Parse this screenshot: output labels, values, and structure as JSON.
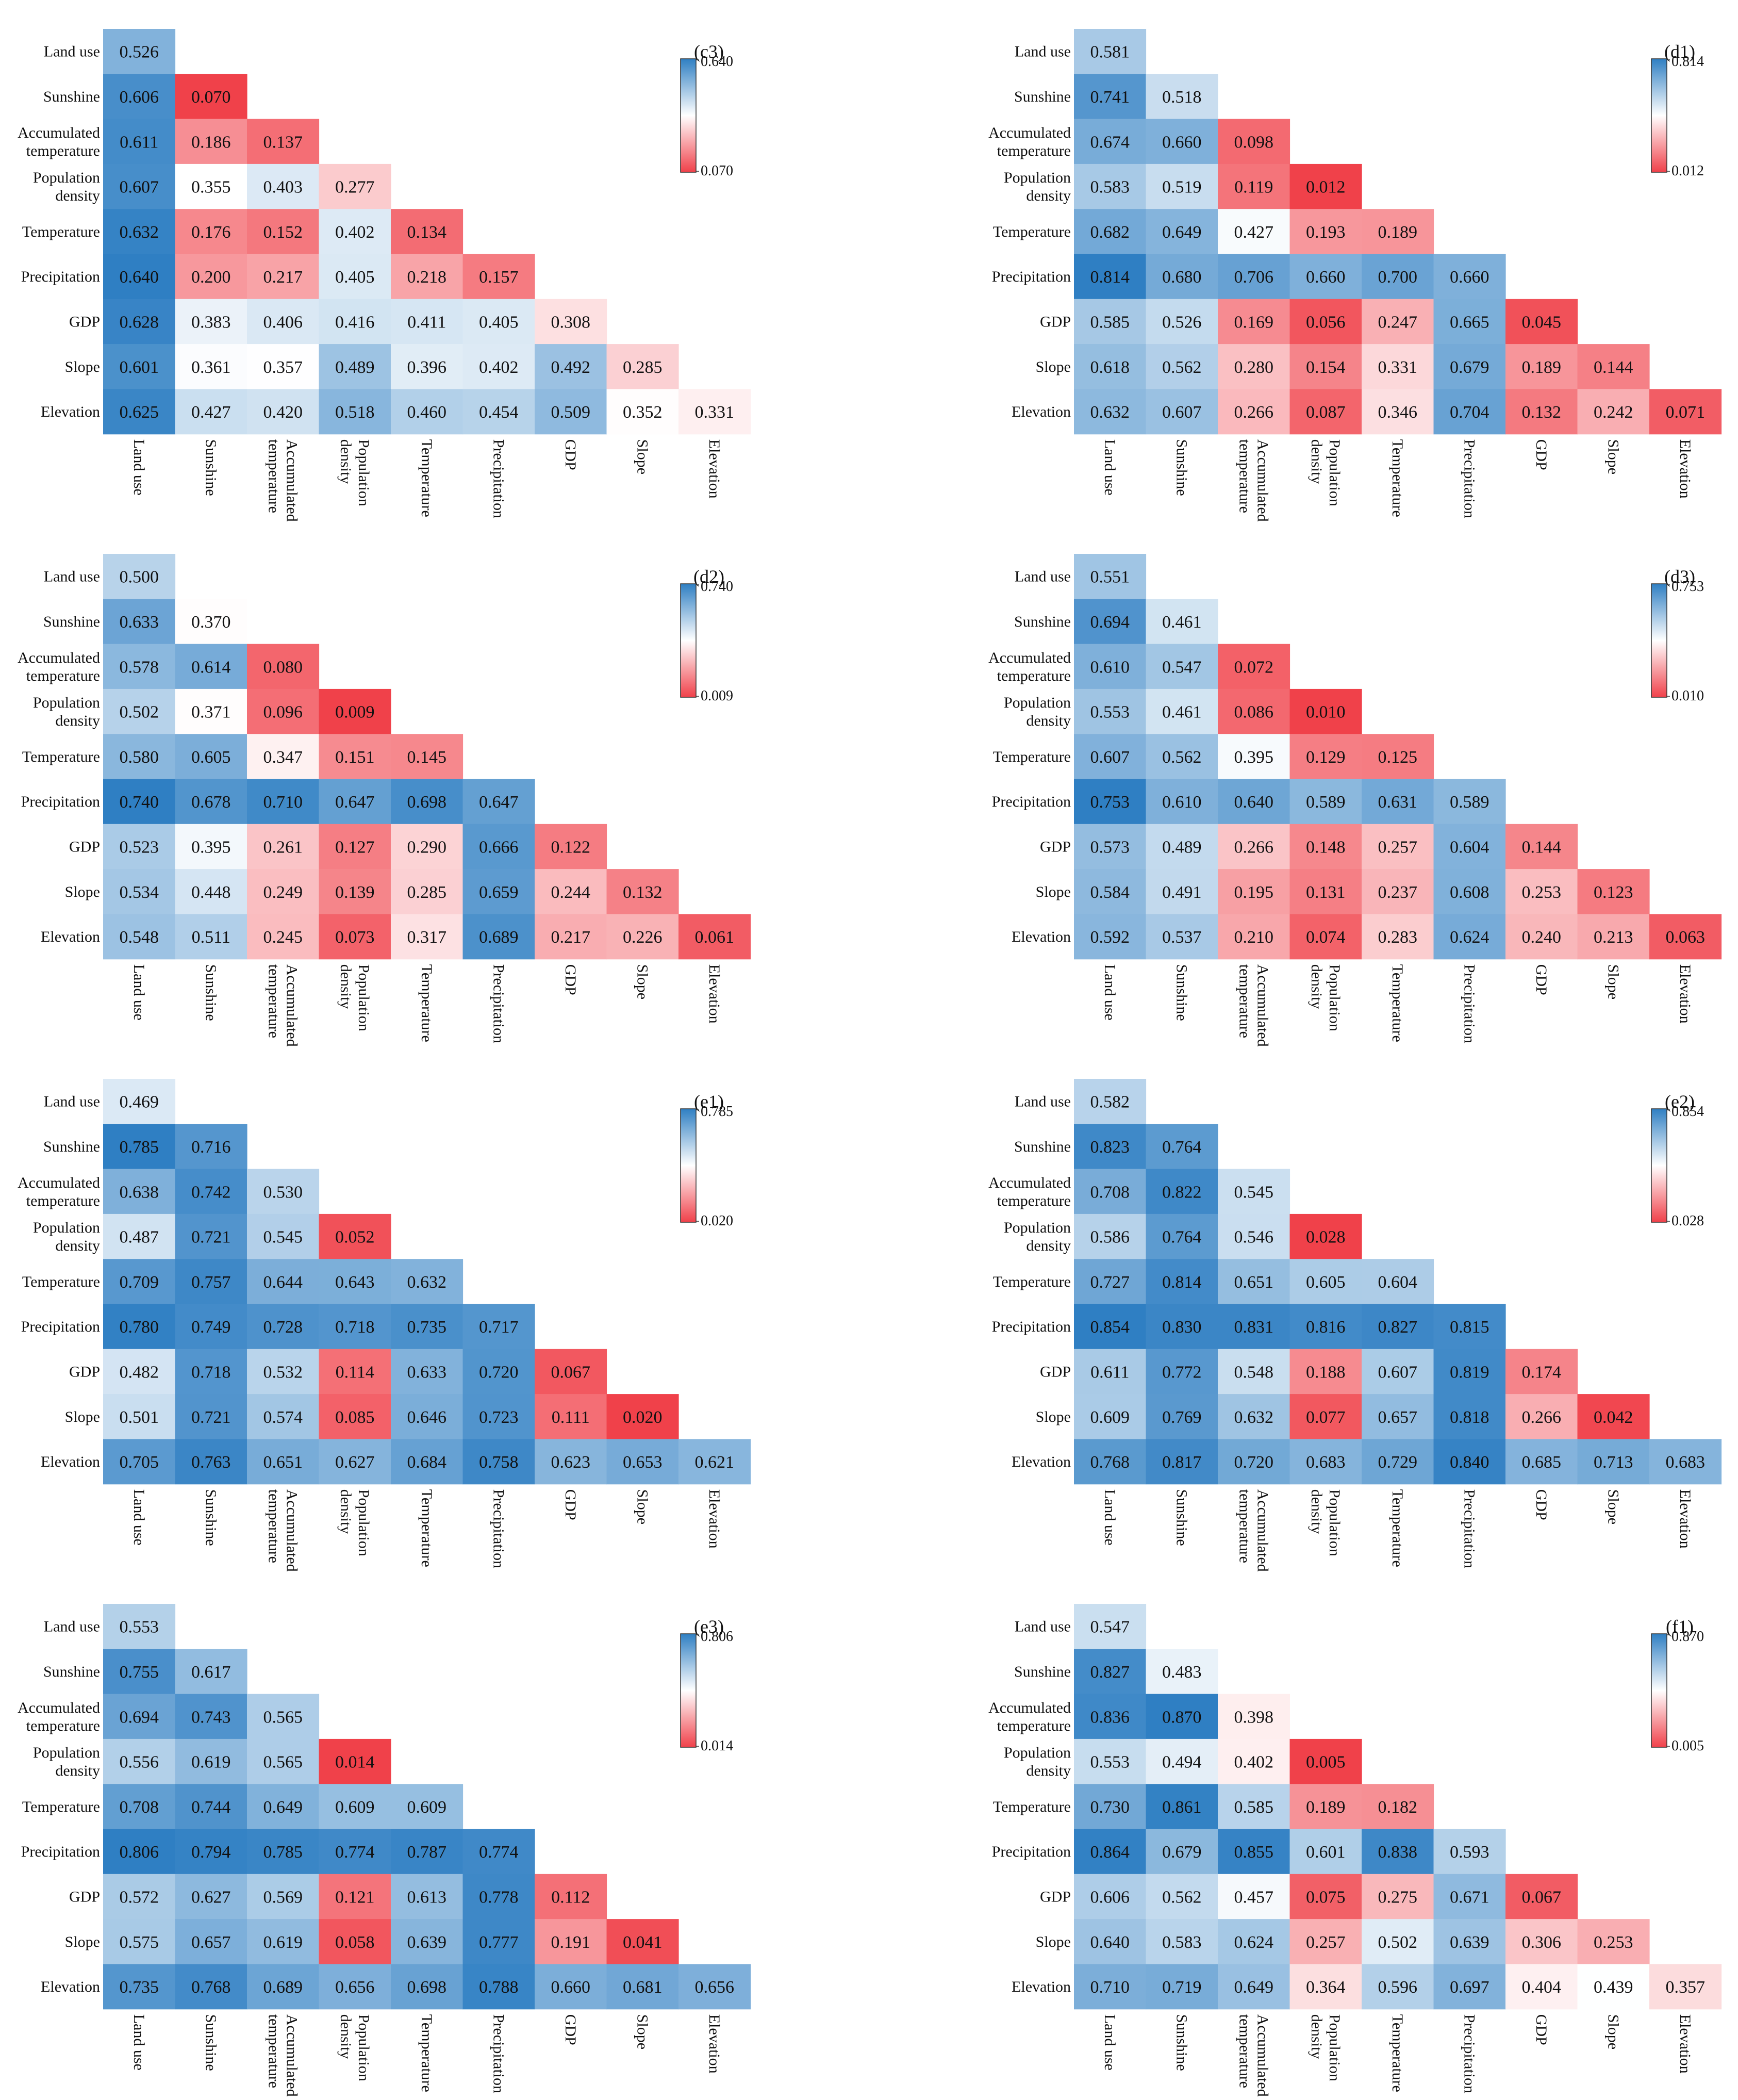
{
  "colors": {
    "low": "#f0414a",
    "mid": "#ffffff",
    "high": "#2f7fc3"
  },
  "chart_data": [
    {
      "type": "heatmap",
      "title": "(c3)",
      "variables": [
        "Land use",
        "Sunshine",
        "Accumulated temperature",
        "Population density",
        "Temperature",
        "Precipitation",
        "GDP",
        "Slope",
        "Elevation"
      ],
      "values": [
        [
          0.526
        ],
        [
          0.606,
          0.07
        ],
        [
          0.611,
          0.186,
          0.137
        ],
        [
          0.607,
          0.355,
          0.403,
          0.277
        ],
        [
          0.632,
          0.176,
          0.152,
          0.402,
          0.134
        ],
        [
          0.64,
          0.2,
          0.217,
          0.405,
          0.218,
          0.157
        ],
        [
          0.628,
          0.383,
          0.406,
          0.416,
          0.411,
          0.405,
          0.308
        ],
        [
          0.601,
          0.361,
          0.357,
          0.489,
          0.396,
          0.402,
          0.492,
          0.285
        ],
        [
          0.625,
          0.427,
          0.42,
          0.518,
          0.46,
          0.454,
          0.509,
          0.352,
          0.331
        ]
      ],
      "colorbar": {
        "max": "0.640",
        "min": "0.070"
      }
    },
    {
      "type": "heatmap",
      "title": "(d1)",
      "variables": [
        "Land use",
        "Sunshine",
        "Accumulated temperature",
        "Population density",
        "Temperature",
        "Precipitation",
        "GDP",
        "Slope",
        "Elevation"
      ],
      "values": [
        [
          0.581
        ],
        [
          0.741,
          0.518
        ],
        [
          0.674,
          0.66,
          0.098
        ],
        [
          0.583,
          0.519,
          0.119,
          0.012
        ],
        [
          0.682,
          0.649,
          0.427,
          0.193,
          0.189
        ],
        [
          0.814,
          0.68,
          0.706,
          0.66,
          0.7,
          0.66
        ],
        [
          0.585,
          0.526,
          0.169,
          0.056,
          0.247,
          0.665,
          0.045
        ],
        [
          0.618,
          0.562,
          0.28,
          0.154,
          0.331,
          0.679,
          0.189,
          0.144
        ],
        [
          0.632,
          0.607,
          0.266,
          0.087,
          0.346,
          0.704,
          0.132,
          0.242,
          0.071
        ]
      ],
      "colorbar": {
        "max": "0.814",
        "min": "0.012"
      }
    },
    {
      "type": "heatmap",
      "title": "(d2)",
      "variables": [
        "Land use",
        "Sunshine",
        "Accumulated temperature",
        "Population density",
        "Temperature",
        "Precipitation",
        "GDP",
        "Slope",
        "Elevation"
      ],
      "values": [
        [
          0.5
        ],
        [
          0.633,
          0.37
        ],
        [
          0.578,
          0.614,
          0.08
        ],
        [
          0.502,
          0.371,
          0.096,
          0.009
        ],
        [
          0.58,
          0.605,
          0.347,
          0.151,
          0.145
        ],
        [
          0.74,
          0.678,
          0.71,
          0.647,
          0.698,
          0.647
        ],
        [
          0.523,
          0.395,
          0.261,
          0.127,
          0.29,
          0.666,
          0.122
        ],
        [
          0.534,
          0.448,
          0.249,
          0.139,
          0.285,
          0.659,
          0.244,
          0.132
        ],
        [
          0.548,
          0.511,
          0.245,
          0.073,
          0.317,
          0.689,
          0.217,
          0.226,
          0.061
        ]
      ],
      "colorbar": {
        "max": "0.740",
        "min": "0.009"
      }
    },
    {
      "type": "heatmap",
      "title": "(d3)",
      "variables": [
        "Land use",
        "Sunshine",
        "Accumulated temperature",
        "Population density",
        "Temperature",
        "Precipitation",
        "GDP",
        "Slope",
        "Elevation"
      ],
      "values": [
        [
          0.551
        ],
        [
          0.694,
          0.461
        ],
        [
          0.61,
          0.547,
          0.072
        ],
        [
          0.553,
          0.461,
          0.086,
          0.01
        ],
        [
          0.607,
          0.562,
          0.395,
          0.129,
          0.125
        ],
        [
          0.753,
          0.61,
          0.64,
          0.589,
          0.631,
          0.589
        ],
        [
          0.573,
          0.489,
          0.266,
          0.148,
          0.257,
          0.604,
          0.144
        ],
        [
          0.584,
          0.491,
          0.195,
          0.131,
          0.237,
          0.608,
          0.253,
          0.123
        ],
        [
          0.592,
          0.537,
          0.21,
          0.074,
          0.283,
          0.624,
          0.24,
          0.213,
          0.063
        ]
      ],
      "colorbar": {
        "max": "0.753",
        "min": "0.010"
      }
    },
    {
      "type": "heatmap",
      "title": "(e1)",
      "variables": [
        "Land use",
        "Sunshine",
        "Accumulated temperature",
        "Population density",
        "Temperature",
        "Precipitation",
        "GDP",
        "Slope",
        "Elevation"
      ],
      "values": [
        [
          0.469
        ],
        [
          0.785,
          0.716
        ],
        [
          0.638,
          0.742,
          0.53
        ],
        [
          0.487,
          0.721,
          0.545,
          0.052
        ],
        [
          0.709,
          0.757,
          0.644,
          0.643,
          0.632
        ],
        [
          0.78,
          0.749,
          0.728,
          0.718,
          0.735,
          0.717
        ],
        [
          0.482,
          0.718,
          0.532,
          0.114,
          0.633,
          0.72,
          0.067
        ],
        [
          0.501,
          0.721,
          0.574,
          0.085,
          0.646,
          0.723,
          0.111,
          0.02
        ],
        [
          0.705,
          0.763,
          0.651,
          0.627,
          0.684,
          0.758,
          0.623,
          0.653,
          0.621
        ]
      ],
      "colorbar": {
        "max": "0.785",
        "min": "0.020"
      }
    },
    {
      "type": "heatmap",
      "title": "(e2)",
      "variables": [
        "Land use",
        "Sunshine",
        "Accumulated temperature",
        "Population density",
        "Temperature",
        "Precipitation",
        "GDP",
        "Slope",
        "Elevation"
      ],
      "values": [
        [
          0.582
        ],
        [
          0.823,
          0.764
        ],
        [
          0.708,
          0.822,
          0.545
        ],
        [
          0.586,
          0.764,
          0.546,
          0.028
        ],
        [
          0.727,
          0.814,
          0.651,
          0.605,
          0.604
        ],
        [
          0.854,
          0.83,
          0.831,
          0.816,
          0.827,
          0.815
        ],
        [
          0.611,
          0.772,
          0.548,
          0.188,
          0.607,
          0.819,
          0.174
        ],
        [
          0.609,
          0.769,
          0.632,
          0.077,
          0.657,
          0.818,
          0.266,
          0.042
        ],
        [
          0.768,
          0.817,
          0.72,
          0.683,
          0.729,
          0.84,
          0.685,
          0.713,
          0.683
        ]
      ],
      "colorbar": {
        "max": "0.854",
        "min": "0.028"
      }
    },
    {
      "type": "heatmap",
      "title": "(e3)",
      "variables": [
        "Land use",
        "Sunshine",
        "Accumulated temperature",
        "Population density",
        "Temperature",
        "Precipitation",
        "GDP",
        "Slope",
        "Elevation"
      ],
      "values": [
        [
          0.553
        ],
        [
          0.755,
          0.617
        ],
        [
          0.694,
          0.743,
          0.565
        ],
        [
          0.556,
          0.619,
          0.565,
          0.014
        ],
        [
          0.708,
          0.744,
          0.649,
          0.609,
          0.609
        ],
        [
          0.806,
          0.794,
          0.785,
          0.774,
          0.787,
          0.774
        ],
        [
          0.572,
          0.627,
          0.569,
          0.121,
          0.613,
          0.778,
          0.112
        ],
        [
          0.575,
          0.657,
          0.619,
          0.058,
          0.639,
          0.777,
          0.191,
          0.041
        ],
        [
          0.735,
          0.768,
          0.689,
          0.656,
          0.698,
          0.788,
          0.66,
          0.681,
          0.656
        ]
      ],
      "colorbar": {
        "max": "0.806",
        "min": "0.014"
      }
    },
    {
      "type": "heatmap",
      "title": "(f1)",
      "variables": [
        "Land use",
        "Sunshine",
        "Accumulated temperature",
        "Population density",
        "Temperature",
        "Precipitation",
        "GDP",
        "Slope",
        "Elevation"
      ],
      "values": [
        [
          0.547
        ],
        [
          0.827,
          0.483
        ],
        [
          0.836,
          0.87,
          0.398
        ],
        [
          0.553,
          0.494,
          0.402,
          0.005
        ],
        [
          0.73,
          0.861,
          0.585,
          0.189,
          0.182
        ],
        [
          0.864,
          0.679,
          0.855,
          0.601,
          0.838,
          0.593
        ],
        [
          0.606,
          0.562,
          0.457,
          0.075,
          0.275,
          0.671,
          0.067
        ],
        [
          0.64,
          0.583,
          0.624,
          0.257,
          0.502,
          0.639,
          0.306,
          0.253
        ],
        [
          0.71,
          0.719,
          0.649,
          0.364,
          0.596,
          0.697,
          0.404,
          0.439,
          0.357
        ]
      ],
      "colorbar": {
        "max": "0.870",
        "min": "0.005"
      }
    }
  ]
}
